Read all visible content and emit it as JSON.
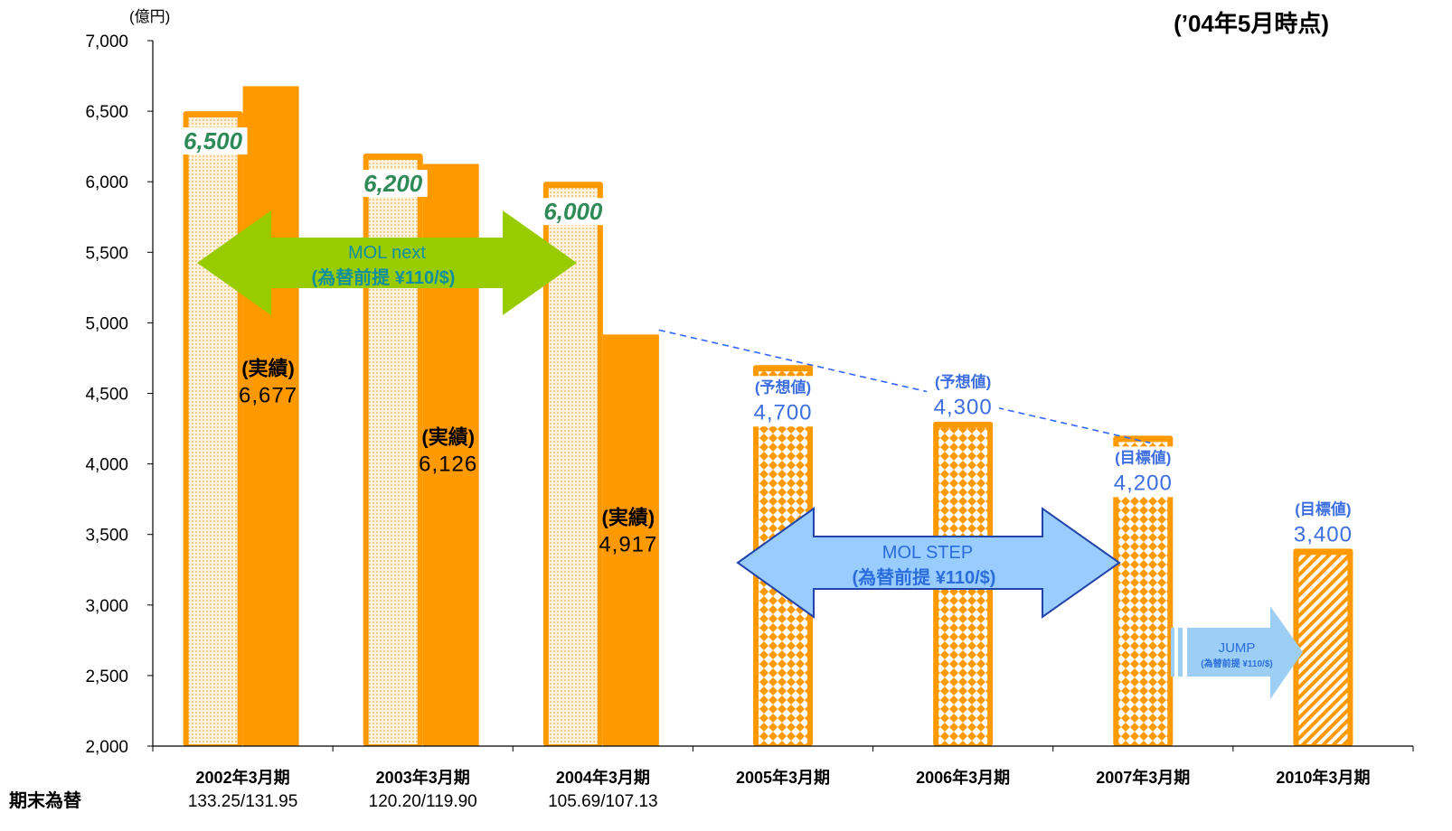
{
  "chart_data": {
    "type": "bar",
    "title": "(’04年5月時点)",
    "ylabel": "(億円)",
    "ylim": [
      2000,
      7000
    ],
    "ytick_labels": [
      "2,000",
      "2,500",
      "3,000",
      "3,500",
      "4,000",
      "4,500",
      "5,000",
      "5,500",
      "6,000",
      "6,500",
      "7,000"
    ],
    "categories": [
      "2002年3月期",
      "2003年3月期",
      "2004年3月期",
      "2005年3月期",
      "2006年3月期",
      "2007年3月期",
      "2010年3月期"
    ],
    "series": [
      {
        "values": [
          6500,
          6200,
          6000,
          4700,
          4300,
          4200,
          3400
        ],
        "labels": [
          "6,500",
          "6,200",
          "6,000",
          "4,700",
          "4,300",
          "4,200",
          "3,400"
        ],
        "tags": [
          "",
          "",
          "",
          "(予想値)",
          "(予想値)",
          "(目標値)",
          "(目標値)"
        ],
        "fill_patterns": [
          "dots",
          "dots",
          "dots",
          "checker",
          "checker",
          "checker",
          "hatch"
        ]
      },
      {
        "values": [
          6677,
          6126,
          4917,
          null,
          null,
          null,
          null
        ],
        "labels": [
          "6,677",
          "6,126",
          "4,917",
          "",
          "",
          "",
          ""
        ],
        "tags": [
          "(実績)",
          "(実績)",
          "(実績)",
          "",
          "",
          "",
          ""
        ]
      }
    ],
    "rate_label": "期末為替",
    "rates": [
      "133.25/131.95",
      "120.20/119.90",
      "105.69/107.13",
      "",
      "",
      "",
      ""
    ],
    "annotations": [
      {
        "kind": "arrow-double",
        "color": "#99cc00",
        "lines": [
          "MOL next",
          "(為替前提 ¥110/$)"
        ]
      },
      {
        "kind": "arrow-double",
        "color": "#99ccff",
        "lines": [
          "MOL STEP",
          "(為替前提 ¥110/$)"
        ]
      },
      {
        "kind": "arrow-right",
        "color": "#9dcff5",
        "lines": [
          "JUMP",
          "(為替前提 ¥110/$)"
        ]
      }
    ],
    "grid": false,
    "colors": {
      "bar": "#ff9900",
      "bar_border": "#ff9900",
      "inner_fill": "#fde7bf",
      "axis": "#000000",
      "trend_line": "#3366ff"
    }
  }
}
